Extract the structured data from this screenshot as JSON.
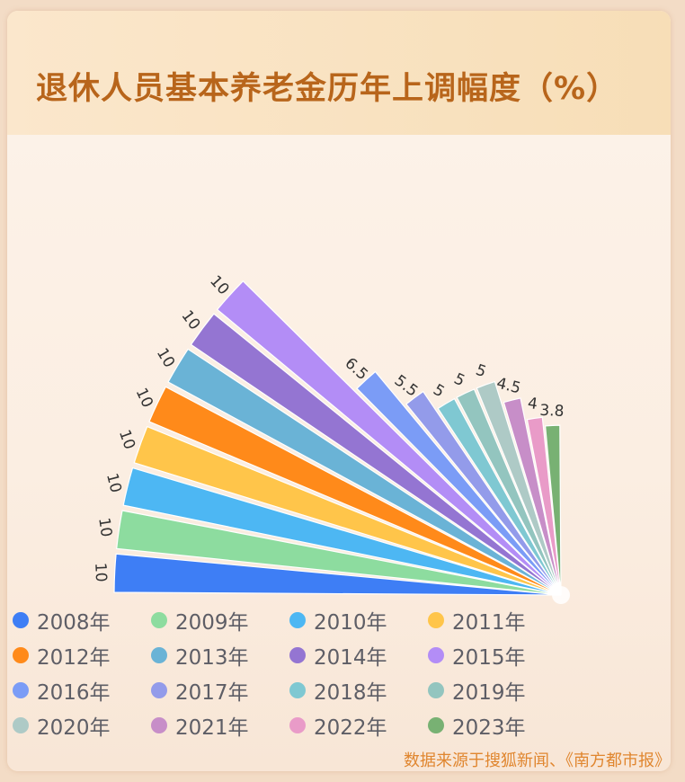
{
  "title": "退休人员基本养老金历年上调幅度（%）",
  "source": "数据来源于搜狐新闻、《南方都市报》",
  "chart_data": {
    "type": "bar",
    "style": "radial-fan",
    "title": "退休人员基本养老金历年上调幅度（%）",
    "unit": "%",
    "categories": [
      "2008年",
      "2009年",
      "2010年",
      "2011年",
      "2012年",
      "2013年",
      "2014年",
      "2015年",
      "2016年",
      "2017年",
      "2018年",
      "2019年",
      "2020年",
      "2021年",
      "2022年",
      "2023年"
    ],
    "values": [
      10,
      10,
      10,
      10,
      10,
      10,
      10,
      10,
      6.5,
      5.5,
      5,
      5,
      5,
      4.5,
      4,
      3.8
    ],
    "value_labels": [
      "10",
      "10",
      "10",
      "10",
      "10",
      "10",
      "10",
      "10",
      "6.5",
      "5.5",
      "5",
      "5",
      "5",
      "4.5",
      "4",
      "3.8"
    ],
    "colors": [
      "#3e7ef5",
      "#8ddc9f",
      "#4db7f3",
      "#ffc54a",
      "#ff8a1a",
      "#6ab3d6",
      "#9475d2",
      "#b38df6",
      "#7b9cf6",
      "#939bea",
      "#7fc8d2",
      "#93c5bf",
      "#aecac6",
      "#c78ec8",
      "#e99bc8",
      "#78b173"
    ],
    "legend_position": "bottom",
    "grid": false
  }
}
